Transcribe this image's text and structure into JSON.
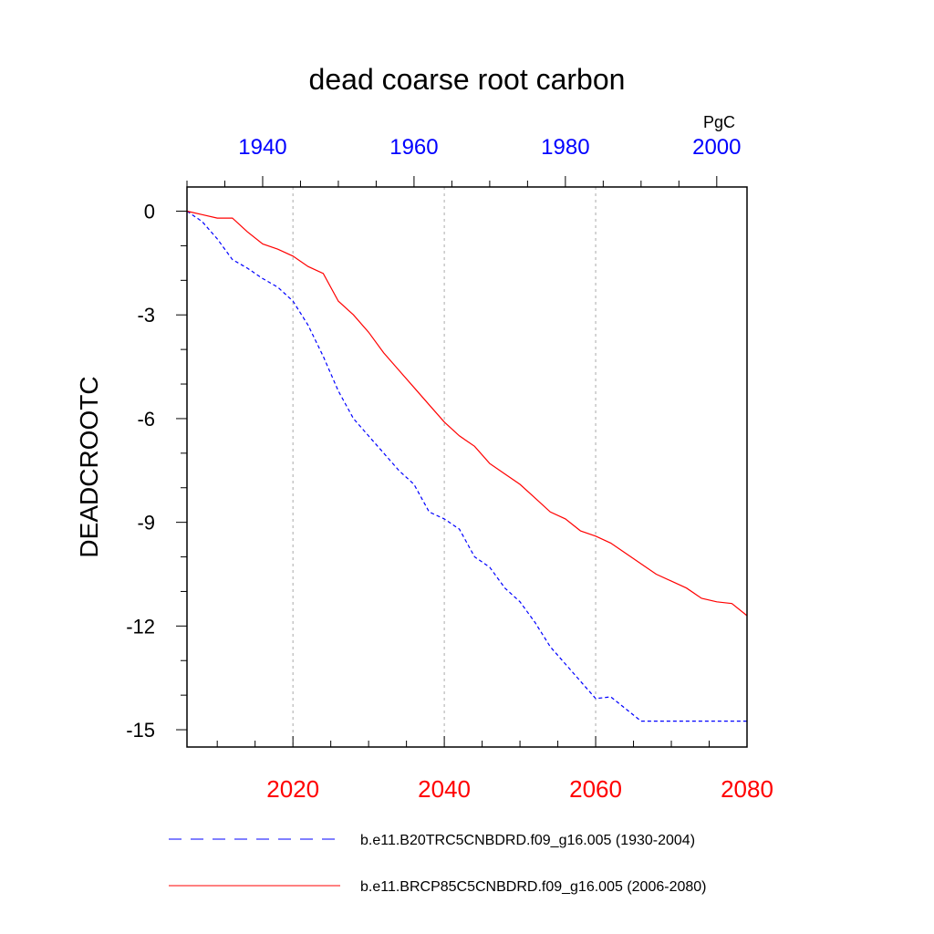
{
  "chart_data": {
    "type": "line",
    "title": "dead coarse root carbon",
    "units": "PgC",
    "ylabel": "DEADCROOTC",
    "ylim": [
      -15.5,
      0.7
    ],
    "yticks": [
      0,
      -3,
      -6,
      -9,
      -12,
      -15
    ],
    "ytick_labels": [
      "0",
      "-3",
      "-6",
      "-9",
      "-12",
      "-15"
    ],
    "x_bottom": {
      "range": [
        2006,
        2080
      ],
      "ticks": [
        2020,
        2040,
        2060,
        2080
      ],
      "tick_labels": [
        "2020",
        "2040",
        "2060",
        "2080"
      ],
      "color": "#ff0000"
    },
    "x_top": {
      "range": [
        1930,
        2004
      ],
      "ticks": [
        1940,
        1960,
        1980,
        2000
      ],
      "tick_labels": [
        "1940",
        "1960",
        "1980",
        "2000"
      ],
      "color": "#0000ff"
    },
    "grid_x": [
      2020,
      2040,
      2060
    ],
    "series": [
      {
        "name": "b.e11.B20TRC5CNBDRD.f09_g16.005 (1930-2004)",
        "axis": "top",
        "color": "#0000ff",
        "style": "dashed",
        "x": [
          1930,
          1932,
          1934,
          1936,
          1938,
          1940,
          1942,
          1944,
          1946,
          1948,
          1950,
          1952,
          1954,
          1956,
          1958,
          1960,
          1962,
          1964,
          1966,
          1968,
          1970,
          1972,
          1974,
          1976,
          1978,
          1980,
          1982,
          1984,
          1986,
          1988,
          1990,
          1992,
          1994,
          1996,
          1998,
          2000,
          2002,
          2004
        ],
        "values": [
          0.0,
          -0.3,
          -0.8,
          -1.4,
          -1.65,
          -1.95,
          -2.2,
          -2.6,
          -3.3,
          -4.2,
          -5.2,
          -6.0,
          -6.5,
          -7.0,
          -7.5,
          -7.9,
          -8.7,
          -8.9,
          -9.2,
          -10.0,
          -10.3,
          -10.9,
          -11.3,
          -11.9,
          -12.6,
          -13.1,
          -13.6,
          -14.1,
          -14.05,
          -14.4,
          -14.75,
          -14.75,
          -14.75,
          -14.75,
          -14.75,
          -14.75,
          -14.75,
          -14.75
        ]
      },
      {
        "name": "b.e11.BRCP85C5CNBDRD.f09_g16.005 (2006-2080)",
        "axis": "bottom",
        "color": "#ff0000",
        "style": "solid",
        "x": [
          2006,
          2008,
          2010,
          2012,
          2014,
          2016,
          2018,
          2020,
          2022,
          2024,
          2026,
          2028,
          2030,
          2032,
          2034,
          2036,
          2038,
          2040,
          2042,
          2044,
          2046,
          2048,
          2050,
          2052,
          2054,
          2056,
          2058,
          2060,
          2062,
          2064,
          2066,
          2068,
          2070,
          2072,
          2074,
          2076,
          2078,
          2080
        ],
        "values": [
          0.0,
          -0.1,
          -0.2,
          -0.2,
          -0.6,
          -0.95,
          -1.1,
          -1.3,
          -1.6,
          -1.8,
          -2.6,
          -3.0,
          -3.5,
          -4.1,
          -4.6,
          -5.1,
          -5.6,
          -6.1,
          -6.5,
          -6.8,
          -7.3,
          -7.6,
          -7.9,
          -8.3,
          -8.7,
          -8.9,
          -9.25,
          -9.4,
          -9.6,
          -9.9,
          -10.2,
          -10.5,
          -10.7,
          -10.9,
          -11.2,
          -11.3,
          -11.35,
          -11.7
        ]
      }
    ]
  }
}
